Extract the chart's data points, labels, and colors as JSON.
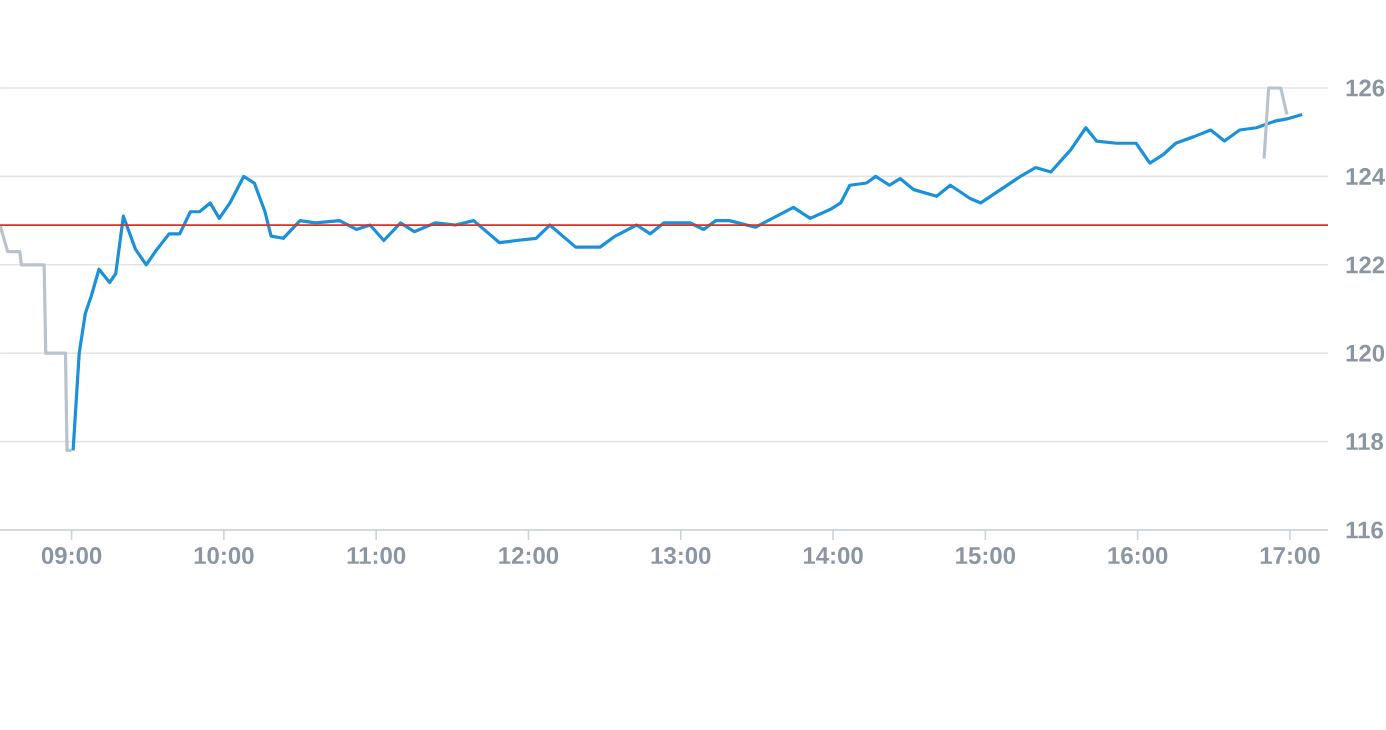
{
  "chart_data": {
    "type": "line",
    "xlim": [
      8.53,
      17.25
    ],
    "ylim": [
      116,
      126
    ],
    "xticks": [
      {
        "value": 9,
        "label": "09:00"
      },
      {
        "value": 10,
        "label": "10:00"
      },
      {
        "value": 11,
        "label": "11:00"
      },
      {
        "value": 12,
        "label": "12:00"
      },
      {
        "value": 13,
        "label": "13:00"
      },
      {
        "value": 14,
        "label": "14:00"
      },
      {
        "value": 15,
        "label": "15:00"
      },
      {
        "value": 16,
        "label": "16:00"
      },
      {
        "value": 17,
        "label": "17:00"
      }
    ],
    "yticks": [
      116,
      118,
      120,
      122,
      124,
      126
    ],
    "grid": "y",
    "marker": "none",
    "line_style": "solid",
    "ref_lines": [
      {
        "axis": "y",
        "value": 122.9,
        "color": "#d9302c"
      }
    ],
    "series": [
      {
        "color": "#b8c4cc",
        "x": [
          8.53,
          8.58,
          8.66,
          8.67,
          8.82,
          8.83,
          8.96,
          8.97,
          9.0
        ],
        "values": [
          122.9,
          122.3,
          122.3,
          122.0,
          122.0,
          120.0,
          120.0,
          117.8,
          117.8
        ]
      },
      {
        "color": "#1a91da",
        "x": [
          9.01,
          9.05,
          9.09,
          9.13,
          9.18,
          9.25,
          9.29,
          9.34,
          9.42,
          9.49,
          9.55,
          9.64,
          9.71,
          9.78,
          9.84,
          9.91,
          9.97,
          10.04,
          10.13,
          10.2,
          10.27,
          10.31,
          10.39,
          10.5,
          10.6,
          10.76,
          10.87,
          10.96,
          11.05,
          11.16,
          11.25,
          11.39,
          11.52,
          11.64,
          11.81,
          11.92,
          12.05,
          12.14,
          12.31,
          12.47,
          12.57,
          12.71,
          12.8,
          12.89,
          13.06,
          13.15,
          13.23,
          13.32,
          13.49,
          13.63,
          13.74,
          13.85,
          13.98,
          14.05,
          14.11,
          14.22,
          14.28,
          14.37,
          14.44,
          14.53,
          14.68,
          14.77,
          14.9,
          14.97,
          15.1,
          15.23,
          15.33,
          15.43,
          15.56,
          15.66,
          15.73,
          15.86,
          15.99,
          16.08,
          16.17,
          16.25,
          16.37,
          16.48,
          16.57,
          16.67,
          16.78,
          16.9,
          16.98,
          17.08
        ],
        "values": [
          117.8,
          120.0,
          120.9,
          121.3,
          121.9,
          121.6,
          121.8,
          123.1,
          122.35,
          122.0,
          122.3,
          122.7,
          122.7,
          123.2,
          123.2,
          123.4,
          123.05,
          123.4,
          124.0,
          123.85,
          123.2,
          122.65,
          122.6,
          123.0,
          122.95,
          123.0,
          122.8,
          122.9,
          122.55,
          122.95,
          122.75,
          122.95,
          122.9,
          123.0,
          122.5,
          122.55,
          122.6,
          122.9,
          122.4,
          122.4,
          122.65,
          122.9,
          122.7,
          122.95,
          122.95,
          122.8,
          123.0,
          123.0,
          122.85,
          123.1,
          123.3,
          123.05,
          123.25,
          123.4,
          123.8,
          123.85,
          124.0,
          123.8,
          123.95,
          123.7,
          123.55,
          123.8,
          123.5,
          123.4,
          123.7,
          124.0,
          124.2,
          124.1,
          124.6,
          125.1,
          124.8,
          124.75,
          124.75,
          124.3,
          124.5,
          124.75,
          124.9,
          125.05,
          124.8,
          125.05,
          125.1,
          125.25,
          125.3,
          125.4
        ]
      },
      {
        "color": "#b8c4cc",
        "x": [
          16.83,
          16.86,
          16.94,
          16.98
        ],
        "values": [
          124.4,
          126.0,
          126.0,
          125.4
        ]
      }
    ]
  }
}
